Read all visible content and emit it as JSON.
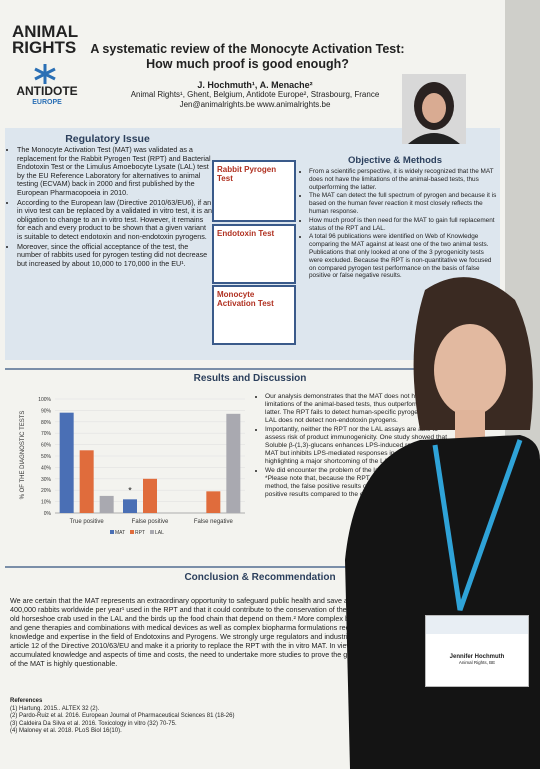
{
  "poster": {
    "header": {
      "logo_top": "ANIMAL",
      "logo_bottom": "RIGHTS",
      "logo2_top": "ANTIDOTE",
      "logo2_bottom": "EUROPE",
      "title_line1": "A systematic review of the Monocyte Activation Test:",
      "title_line2": "How much proof is good enough?",
      "authors": "J. Hochmuth¹, A. Menache²",
      "affiliation": "Animal Rights¹, Ghent, Belgium, Antidote Europe², Strasbourg, France",
      "contact": "Jen@animalrights.be www.animalrights.be"
    },
    "regulatory": {
      "heading": "Regulatory Issue",
      "bullets": [
        "The Monocyte Activation Test (MAT) was validated as a replacement for the Rabbit Pyrogen Test (RPT) and Bacterial Endotoxin Test or the Limulus Amoebocyte Lysate (LAL) test by the EU Reference Laboratory for alternatives to animal testing (ECVAM) back in 2000 and first published by the European Pharmacopoeia in 2010.",
        "According to the European law (Directive 2010/63/EU6), if an in vivo test can be replaced by a validated in vitro test, it is an obligation to change to an in vitro test. However, it remains for each and every product to be shown that a given variant is suitable to detect endotoxin and non-endotoxin pyrogens.",
        "Moreover, since the official acceptance of the test, the number of rabbits used for pyrogen testing did not decrease but increased by about 10,000 to 170,000 in the EU¹."
      ]
    },
    "tests": [
      "Rabbit Pyrogen Test",
      "Endotoxin Test",
      "Monocyte Activation Test"
    ],
    "objective": {
      "heading": "Objective & Methods",
      "bullets": [
        "From a scientific perspective, it is widely recognized that the MAT does not have the limitations of the animal-based tests, thus outperforming the latter.",
        "The MAT can detect the full spectrum of pyrogen and because it is based on the human fever reaction it most closely reflects the human response.",
        "How much proof is then need for the MAT to gain full replacement status of the RPT and LAL.",
        "A total 96 publications were identified on Web of Knowledge comparing the MAT against at least one of the two animal tests. Publications that only looked at one of the 3 pyrogenicity tests were excluded. Because the RPT is non-quantitative we focused on compared pyrogen test performance on the basis of false positive or false negative results."
      ]
    },
    "results": {
      "heading": "Results and Discussion",
      "chart": {
        "type": "bar",
        "y_label": "% OF THE DIAGNOSTIC TESTS",
        "categories": [
          "True positive",
          "False positive",
          "False negative"
        ],
        "series": [
          {
            "name": "MAT",
            "color": "#4a6fb5",
            "values": [
              88,
              12,
              0
            ]
          },
          {
            "name": "RPT",
            "color": "#e06c3c",
            "values": [
              55,
              30,
              19
            ]
          },
          {
            "name": "LAL",
            "color": "#a9a9b0",
            "values": [
              15,
              0,
              87
            ]
          }
        ],
        "ylim": [
          0,
          100
        ],
        "yticks": [
          {
            "value": 0,
            "label": "0%"
          },
          {
            "value": 10,
            "label": "10%"
          },
          {
            "value": 20,
            "label": "20%"
          },
          {
            "value": 30,
            "label": "30%"
          },
          {
            "value": 40,
            "label": "40%"
          },
          {
            "value": 50,
            "label": "50%"
          },
          {
            "value": 60,
            "label": "60%"
          },
          {
            "value": 70,
            "label": "70%"
          },
          {
            "value": 80,
            "label": "80%"
          },
          {
            "value": 90,
            "label": "90%"
          },
          {
            "value": 100,
            "label": "100%"
          }
        ],
        "grid": true,
        "annotation": "*"
      },
      "bullets": [
        "Our analysis demonstrates that the MAT does not have the limitations of the animal-based tests, thus outperforming the latter. The RPT fails to detect human-specific pyrogens and the LAL does not detect non-endotoxin pyrogens.",
        "Importantly, neither the RPT nor the LAL assays are able to assess risk of product immunogenicity. One study showed that Soluble β-(1,3)-glucans enhances LPS-induced responses in the MAT but inhibits LPS-mediated responses in the LAL, highlighting a major shortcoming of the LAL.",
        "We did encounter the problem of the lack of a gold standard.* *Please note that, because the RPT is used as reference method, the false positive results of the MAT could in fact be true positive results compared to the outcomes of the RPT instead."
      ]
    },
    "conclusion": {
      "heading": "Conclusion & Recommendation",
      "text": "We are certain that the MAT represents an extraordinary opportunity to safeguard public health and save approximately 400,000 rabbits worldwide per year¹ used in the RPT and that it could contribute to the conservation of the 450-million-year-old horseshoe crab used in the LAL and the birds up the food chain that depend on them.² More complex biologics, cellular and gene therapies and combinations with medical devices as well as complex biopharma formulations require in-depth knowledge and expertise in the field of Endotoxins and Pyrogens. We strongly urge regulators and industries to adhere to article 12 of the Directive 2010/63/EU and make it a priority to replace the RPT with the in vitro MAT. In view of the accumulated knowledge and aspects of time and costs, the need to undertake more studies to prove the general applicability of the MAT is highly questionable."
    },
    "references": {
      "heading": "References",
      "items": [
        "(1)  Hartung. 2015.. ALTEX 32 (2).",
        "(2)  Pardo-Ruiz et al. 2016. European Journal of Pharmaceutical Sciences 81 (18-26)",
        "(3)  Caldeira Da Silva et al. 2016. Toxicology in vitro (32) 70-75.",
        "(4)  Maloney et al. 2018. PLoS Biol 16(10)."
      ]
    },
    "badge": {
      "name": "Jennifer Hochmuth",
      "org": "Animal Rights, BE"
    }
  }
}
